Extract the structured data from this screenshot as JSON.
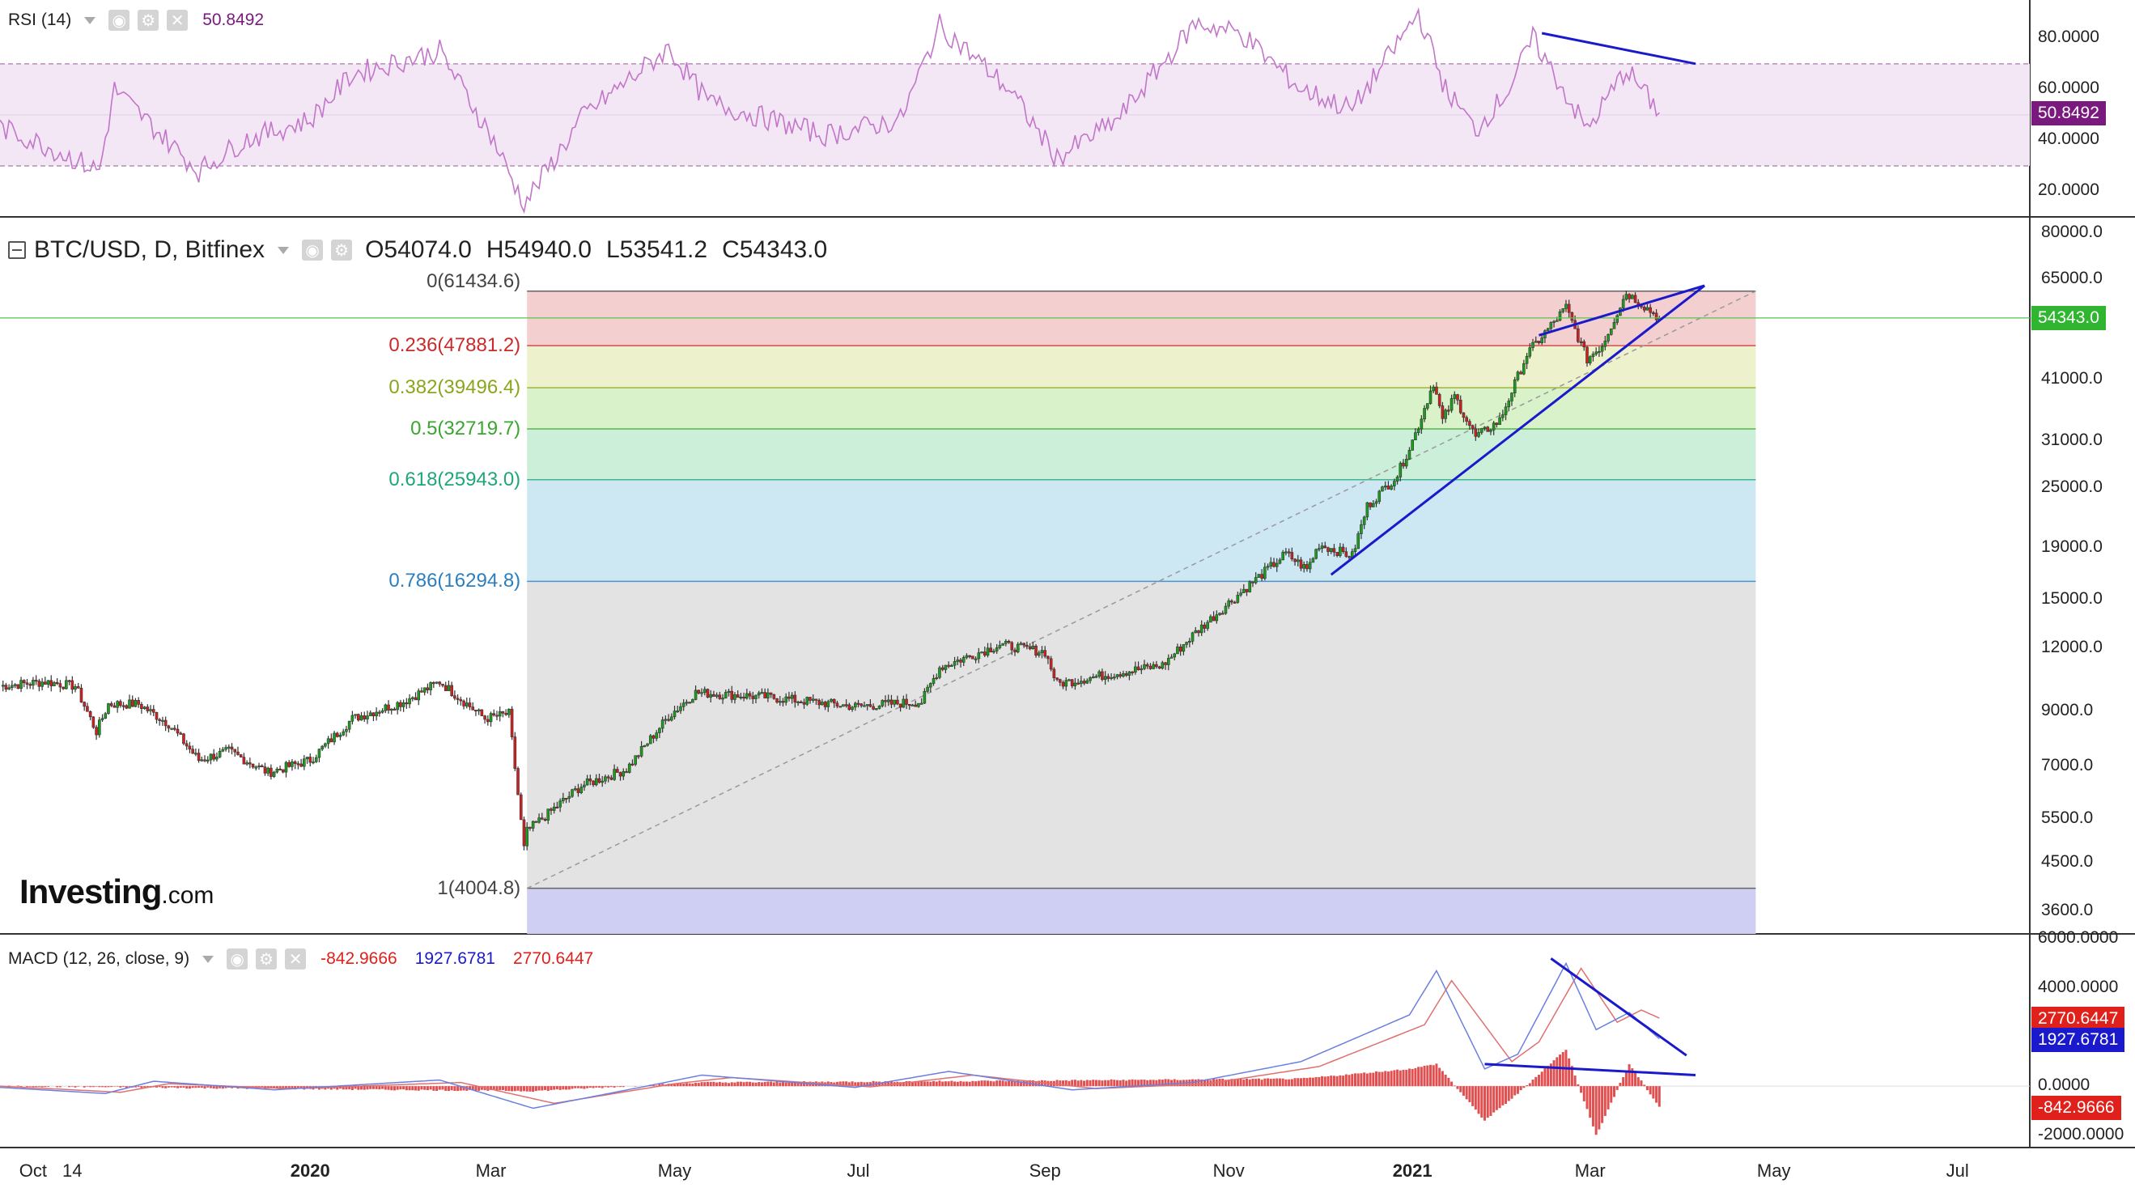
{
  "rsi_panel": {
    "title": "RSI (14)",
    "value": "50.8492",
    "value_tag": "50.8492",
    "axis_labels": [
      "80.0000",
      "60.0000",
      "40.0000",
      "20.0000"
    ],
    "colors": {
      "line": "#c276c9",
      "band": "#f3e6f5",
      "value": "#7a1a7e"
    }
  },
  "price_panel": {
    "title": "BTC/USD, D, Bitfinex",
    "ohlc": [
      {
        "k": "O",
        "v": "54074.0"
      },
      {
        "k": "H",
        "v": "54940.0"
      },
      {
        "k": "L",
        "v": "53541.2"
      },
      {
        "k": "C",
        "v": "54343.0"
      }
    ],
    "last_tag": "54343.0",
    "axis_labels": [
      "80000.0",
      "65000.0",
      "54343.0",
      "41000.0",
      "31000.0",
      "25000.0",
      "19000.0",
      "15000.0",
      "12000.0",
      "9000.0",
      "7000.0",
      "5500.0",
      "4500.0",
      "3600.0"
    ],
    "brand": "Investing",
    "brand_suffix": ".com"
  },
  "fib_levels": [
    {
      "label": "0(61434.6)",
      "color": "#444444"
    },
    {
      "label": "0.236(47881.2)",
      "color": "#cc2a2a"
    },
    {
      "label": "0.382(39496.4)",
      "color": "#8aa61d"
    },
    {
      "label": "0.5(32719.7)",
      "color": "#3aa52f"
    },
    {
      "label": "0.618(25943.0)",
      "color": "#1fa67a"
    },
    {
      "label": "0.786(16294.8)",
      "color": "#2b7fbf"
    },
    {
      "label": "1(4004.8)",
      "color": "#444444"
    }
  ],
  "macd_panel": {
    "title": "MACD (12, 26, close, 9)",
    "values": [
      {
        "v": "-842.9666",
        "color": "#e0201b"
      },
      {
        "v": "1927.6781",
        "color": "#1a1acc"
      },
      {
        "v": "2770.6447",
        "color": "#e0201b"
      }
    ],
    "axis_labels": [
      "6000.0000",
      "4000.0000",
      "2770.6447",
      "1927.6781",
      "0.0000",
      "-842.9666",
      "-2000.0000"
    ]
  },
  "x_axis_labels": [
    "Oct",
    "14",
    "2020",
    "Mar",
    "May",
    "Jul",
    "Sep",
    "Nov",
    "2021",
    "Mar",
    "May",
    "Jul"
  ],
  "chart_data": {
    "type": "candlestick",
    "title": "BTC/USD, D, Bitfinex",
    "x_range": [
      "2019-09-20",
      "2021-07-25"
    ],
    "y_scale": "log",
    "ylim": [
      3300,
      85000
    ],
    "last_close": 54343.0,
    "ohlc_last": {
      "open": 54074.0,
      "high": 54940.0,
      "low": 53541.2,
      "close": 54343.0
    },
    "price_path": [
      [
        "2019-09-20",
        10100
      ],
      [
        "2019-10-05",
        10300
      ],
      [
        "2019-10-15",
        10100
      ],
      [
        "2019-10-22",
        8200
      ],
      [
        "2019-10-26",
        9300
      ],
      [
        "2019-11-05",
        9300
      ],
      [
        "2019-11-15",
        8500
      ],
      [
        "2019-11-25",
        7200
      ],
      [
        "2019-12-05",
        7500
      ],
      [
        "2019-12-18",
        6800
      ],
      [
        "2020-01-01",
        7200
      ],
      [
        "2020-01-15",
        8700
      ],
      [
        "2020-02-01",
        9400
      ],
      [
        "2020-02-13",
        10300
      ],
      [
        "2020-02-28",
        8700
      ],
      [
        "2020-03-07",
        8900
      ],
      [
        "2020-03-12",
        4800
      ],
      [
        "2020-03-13",
        5200
      ],
      [
        "2020-03-31",
        6400
      ],
      [
        "2020-04-15",
        6900
      ],
      [
        "2020-04-29",
        8800
      ],
      [
        "2020-05-08",
        9800
      ],
      [
        "2020-06-01",
        9600
      ],
      [
        "2020-06-30",
        9200
      ],
      [
        "2020-07-22",
        9400
      ],
      [
        "2020-07-28",
        11000
      ],
      [
        "2020-08-17",
        12200
      ],
      [
        "2020-09-01",
        11800
      ],
      [
        "2020-09-05",
        10200
      ],
      [
        "2020-09-20",
        10600
      ],
      [
        "2020-10-10",
        11100
      ],
      [
        "2020-10-21",
        12900
      ],
      [
        "2020-11-05",
        15500
      ],
      [
        "2020-11-20",
        18500
      ],
      [
        "2020-11-27",
        17200
      ],
      [
        "2020-12-01",
        19300
      ],
      [
        "2020-12-12",
        18300
      ],
      [
        "2020-12-17",
        23000
      ],
      [
        "2020-12-27",
        26500
      ],
      [
        "2021-01-02",
        32000
      ],
      [
        "2021-01-08",
        40500
      ],
      [
        "2021-01-11",
        34000
      ],
      [
        "2021-01-15",
        38000
      ],
      [
        "2021-01-22",
        31500
      ],
      [
        "2021-01-30",
        34000
      ],
      [
        "2021-02-08",
        46000
      ],
      [
        "2021-02-21",
        57000
      ],
      [
        "2021-02-28",
        45000
      ],
      [
        "2021-03-05",
        48000
      ],
      [
        "2021-03-13",
        61000
      ],
      [
        "2021-03-18",
        58000
      ],
      [
        "2021-03-24",
        54343
      ]
    ],
    "fib_retracement": {
      "high": 61434.6,
      "low": 4004.8,
      "levels": [
        [
          0,
          61434.6
        ],
        [
          0.236,
          47881.2
        ],
        [
          0.382,
          39496.4
        ],
        [
          0.5,
          32719.7
        ],
        [
          0.618,
          25943.0
        ],
        [
          0.786,
          16294.8
        ],
        [
          1,
          4004.8
        ]
      ],
      "from_date": "2020-03-13",
      "to_date": "2021-04-25"
    },
    "indicators": {
      "rsi": {
        "period": 14,
        "last": 50.8492,
        "ylim": [
          10,
          95
        ],
        "bands": [
          30,
          70
        ],
        "path": [
          [
            "2019-09-20",
            45
          ],
          [
            "2019-10-05",
            38
          ],
          [
            "2019-10-23",
            28
          ],
          [
            "2019-10-28",
            60
          ],
          [
            "2019-11-10",
            45
          ],
          [
            "2019-11-25",
            28
          ],
          [
            "2019-12-10",
            40
          ],
          [
            "2020-01-01",
            48
          ],
          [
            "2020-01-15",
            66
          ],
          [
            "2020-02-13",
            75
          ],
          [
            "2020-03-01",
            42
          ],
          [
            "2020-03-12",
            15
          ],
          [
            "2020-04-01",
            50
          ],
          [
            "2020-04-29",
            76
          ],
          [
            "2020-05-12",
            55
          ],
          [
            "2020-06-20",
            42
          ],
          [
            "2020-07-15",
            48
          ],
          [
            "2020-07-28",
            85
          ],
          [
            "2020-08-20",
            60
          ],
          [
            "2020-09-05",
            33
          ],
          [
            "2020-09-25",
            48
          ],
          [
            "2020-10-21",
            86
          ],
          [
            "2020-11-05",
            82
          ],
          [
            "2020-11-25",
            60
          ],
          [
            "2020-12-12",
            52
          ],
          [
            "2021-01-03",
            90
          ],
          [
            "2021-01-12",
            60
          ],
          [
            "2021-01-22",
            44
          ],
          [
            "2021-02-02",
            60
          ],
          [
            "2021-02-10",
            80
          ],
          [
            "2021-02-28",
            44
          ],
          [
            "2021-03-13",
            68
          ],
          [
            "2021-03-24",
            50.8492
          ]
        ]
      },
      "macd": {
        "params": [
          12,
          26,
          9
        ],
        "source": "close",
        "histogram": -842.9666,
        "macd": 1927.6781,
        "signal": 2770.6447,
        "ylim": [
          -2500,
          6200
        ],
        "macd_path": [
          [
            "2019-09-20",
            -50
          ],
          [
            "2019-10-25",
            -300
          ],
          [
            "2019-11-10",
            200
          ],
          [
            "2019-12-20",
            -150
          ],
          [
            "2020-02-13",
            250
          ],
          [
            "2020-03-15",
            -900
          ],
          [
            "2020-04-25",
            80
          ],
          [
            "2020-05-10",
            450
          ],
          [
            "2020-06-30",
            -50
          ],
          [
            "2020-07-31",
            600
          ],
          [
            "2020-09-10",
            -150
          ],
          [
            "2020-10-20",
            150
          ],
          [
            "2020-11-25",
            1000
          ],
          [
            "2020-12-31",
            2900
          ],
          [
            "2021-01-09",
            4700
          ],
          [
            "2021-01-25",
            700
          ],
          [
            "2021-02-05",
            1300
          ],
          [
            "2021-02-21",
            5000
          ],
          [
            "2021-03-03",
            2300
          ],
          [
            "2021-03-14",
            3000
          ],
          [
            "2021-03-24",
            1927.6781
          ]
        ],
        "signal_path": [
          [
            "2019-09-20",
            0
          ],
          [
            "2019-10-30",
            -250
          ],
          [
            "2019-11-15",
            100
          ],
          [
            "2019-12-25",
            -100
          ],
          [
            "2020-02-20",
            150
          ],
          [
            "2020-03-22",
            -700
          ],
          [
            "2020-05-01",
            100
          ],
          [
            "2020-05-20",
            350
          ],
          [
            "2020-07-05",
            -30
          ],
          [
            "2020-08-08",
            450
          ],
          [
            "2020-09-18",
            -100
          ],
          [
            "2020-10-25",
            100
          ],
          [
            "2020-12-01",
            800
          ],
          [
            "2021-01-05",
            2500
          ],
          [
            "2021-01-14",
            4300
          ],
          [
            "2021-02-03",
            1000
          ],
          [
            "2021-02-12",
            1800
          ],
          [
            "2021-02-26",
            4800
          ],
          [
            "2021-03-10",
            2600
          ],
          [
            "2021-03-18",
            3100
          ],
          [
            "2021-03-24",
            2770.6447
          ]
        ],
        "hist_path": [
          [
            "2019-09-20",
            0
          ],
          [
            "2020-03-15",
            -200
          ],
          [
            "2020-05-10",
            150
          ],
          [
            "2020-07-31",
            200
          ],
          [
            "2020-11-25",
            300
          ],
          [
            "2020-12-31",
            700
          ],
          [
            "2021-01-09",
            900
          ],
          [
            "2021-01-25",
            -1400
          ],
          [
            "2021-02-05",
            -300
          ],
          [
            "2021-02-21",
            1500
          ],
          [
            "2021-03-03",
            -2000
          ],
          [
            "2021-03-14",
            900
          ],
          [
            "2021-03-24",
            -842.9666
          ]
        ]
      }
    },
    "trendlines": [
      {
        "panel": "price",
        "points": [
          [
            "2020-12-05",
            16800
          ],
          [
            "2021-04-08",
            63000
          ]
        ]
      },
      {
        "panel": "price",
        "points": [
          [
            "2021-02-12",
            50200
          ],
          [
            "2021-04-08",
            63000
          ]
        ]
      },
      {
        "panel": "rsi",
        "points": [
          [
            "2021-02-13",
            82
          ],
          [
            "2021-04-05",
            70
          ]
        ]
      },
      {
        "panel": "macd",
        "points": [
          [
            "2021-02-16",
            5200
          ],
          [
            "2021-04-02",
            1250
          ]
        ]
      },
      {
        "panel": "macd",
        "points": [
          [
            "2021-01-25",
            900
          ],
          [
            "2021-04-05",
            450
          ]
        ]
      }
    ]
  }
}
